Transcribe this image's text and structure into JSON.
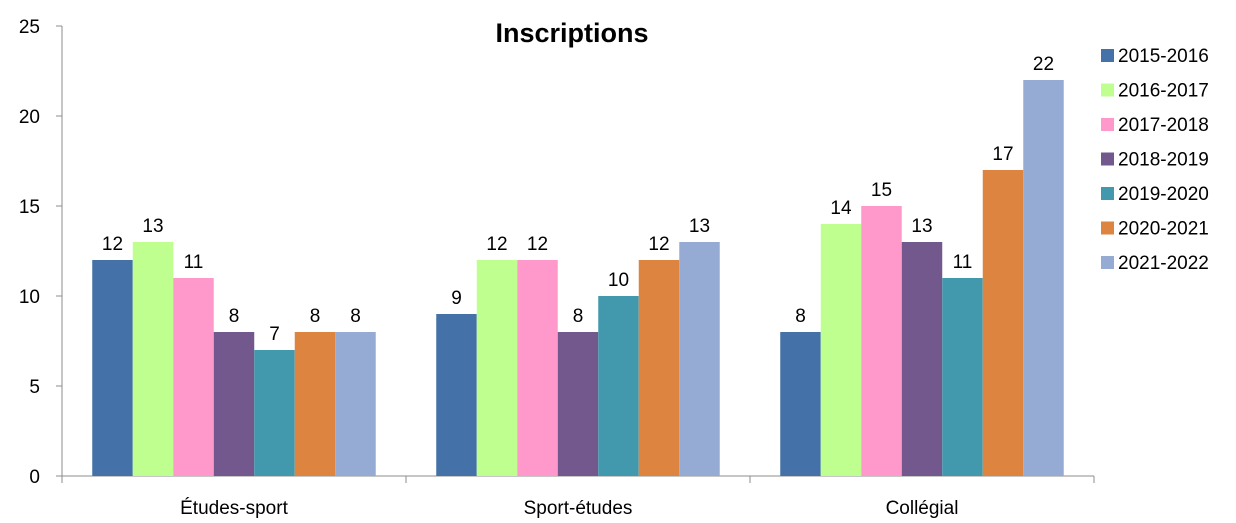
{
  "chart_data": {
    "type": "bar",
    "title": "Inscriptions",
    "xlabel": "",
    "ylabel": "",
    "ylim": [
      0,
      25
    ],
    "yticks": [
      0,
      5,
      10,
      15,
      20,
      25
    ],
    "grid": false,
    "legend_position": "right",
    "categories": [
      "Études-sport",
      "Sport-études",
      "Collégial"
    ],
    "series": [
      {
        "name": "2015-2016",
        "color": "#4472a8",
        "values": [
          12,
          9,
          8
        ]
      },
      {
        "name": "2016-2017",
        "color": "#bfff90",
        "values": [
          13,
          12,
          14
        ]
      },
      {
        "name": "2017-2018",
        "color": "#ff99cc",
        "values": [
          11,
          12,
          15
        ]
      },
      {
        "name": "2018-2019",
        "color": "#72588c",
        "values": [
          8,
          8,
          13
        ]
      },
      {
        "name": "2019-2020",
        "color": "#4299ae",
        "values": [
          7,
          10,
          11
        ]
      },
      {
        "name": "2020-2021",
        "color": "#dc8440",
        "values": [
          8,
          12,
          17
        ]
      },
      {
        "name": "2021-2022",
        "color": "#95abd4",
        "values": [
          8,
          13,
          22
        ]
      }
    ]
  }
}
